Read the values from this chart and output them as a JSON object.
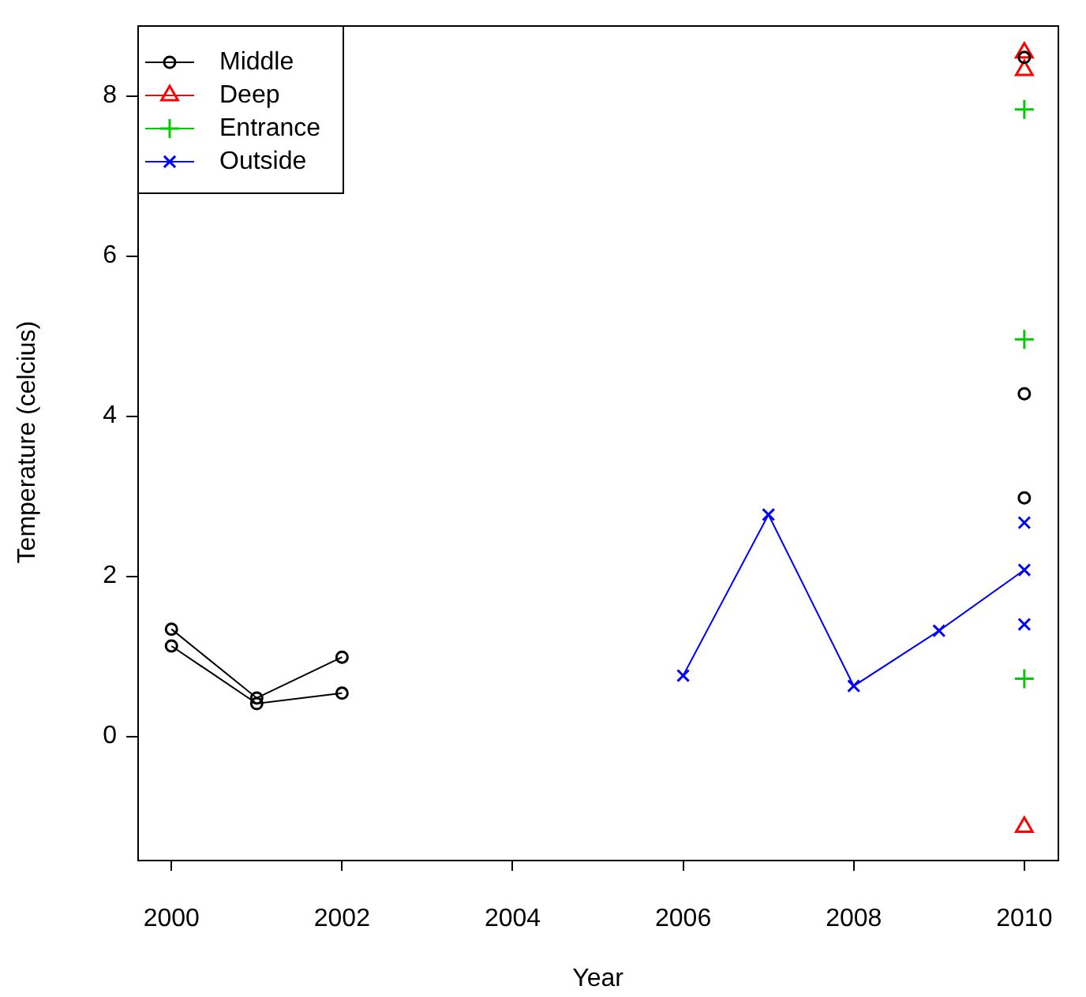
{
  "chart_data": {
    "type": "line",
    "xlabel": "Year",
    "ylabel": "Temperature (celcius)",
    "xlim": [
      1999.6,
      2010.4
    ],
    "xticks": [
      2000,
      2002,
      2004,
      2006,
      2008,
      2010
    ],
    "ylim": [
      -1.54,
      8.89
    ],
    "yticks": [
      0,
      2,
      4,
      6,
      8
    ],
    "legend": "top left",
    "series": [
      {
        "name": "Middle",
        "type": "line",
        "color": "#000000",
        "marker": "circle",
        "x": [
          2000,
          2001,
          2002
        ],
        "values": [
          1.34,
          0.48,
          0.99
        ]
      },
      {
        "type": "line",
        "color": "#000000",
        "marker": "circle",
        "x": [
          2000,
          2001,
          2002
        ],
        "values": [
          1.13,
          0.41,
          0.54
        ]
      },
      {
        "type": "scatter",
        "color": "#000000",
        "marker": "circle",
        "x": [
          2010,
          2010,
          2010
        ],
        "values": [
          8.48,
          4.28,
          2.98
        ]
      },
      {
        "name": "Deep",
        "type": "scatter",
        "color": "#ff0000",
        "marker": "triangle",
        "x": [
          2010,
          2010,
          2010
        ],
        "values": [
          8.54,
          8.32,
          -1.13
        ]
      },
      {
        "name": "Entrance",
        "type": "scatter",
        "color": "#00cd00",
        "marker": "plus",
        "x": [
          2010,
          2010,
          2010
        ],
        "values": [
          7.83,
          4.96,
          0.72
        ]
      },
      {
        "name": "Outside",
        "type": "line",
        "color": "#0000ff",
        "marker": "cross",
        "x": [
          2006,
          2007,
          2008,
          2009,
          2010
        ],
        "values": [
          0.76,
          2.77,
          0.63,
          1.32,
          2.08
        ]
      },
      {
        "type": "scatter",
        "color": "#0000ff",
        "marker": "cross",
        "x": [
          2010,
          2010
        ],
        "values": [
          2.67,
          1.4
        ]
      }
    ]
  }
}
